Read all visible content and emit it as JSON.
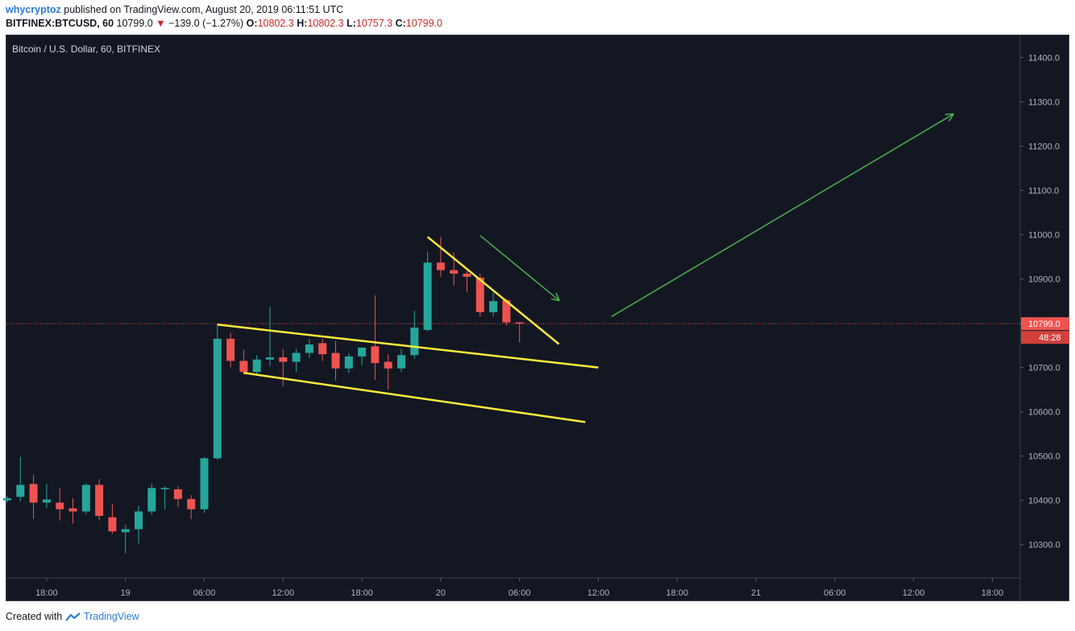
{
  "header": {
    "author": "whycryptoz",
    "published": "published on TradingView.com, August 20, 2019 06:11:51 UTC",
    "symbol_line": "BITFINEX:BTCUSD, 60",
    "last": "10799.0",
    "change_arrow": "▼",
    "change": "−139.0 (−1.27%)",
    "o_label": "O:",
    "o": "10802.3",
    "h_label": "H:",
    "h": "10802.3",
    "l_label": "L:",
    "l": "10757.3",
    "c_label": "C:",
    "c": "10799.0"
  },
  "footer": {
    "created_with": "Created with",
    "brand": "TradingView"
  },
  "colors": {
    "background": "#131722",
    "up": "#26a69a",
    "down": "#ef5350",
    "trendline": "#ffeb3b",
    "arrow": "#4caf50",
    "price_label": "#ef5350"
  },
  "chart_data": {
    "type": "candlestick",
    "title": "Bitcoin / U.S. Dollar, 60, BITFINEX",
    "ylim": [
      10225,
      11450
    ],
    "y_ticks": [
      "11400.0",
      "11300.0",
      "11200.0",
      "11100.0",
      "11000.0",
      "10900.0",
      "10800.0",
      "10700.0",
      "10600.0",
      "10500.0",
      "10400.0",
      "10300.0"
    ],
    "x_ticks": [
      "18:00",
      "19",
      "06:00",
      "12:00",
      "18:00",
      "20",
      "06:00",
      "12:00",
      "18:00",
      "21",
      "06:00",
      "12:00",
      "18:00"
    ],
    "last_price_label": "10799.0",
    "countdown_label": "48:28",
    "candles": [
      {
        "o": 10400,
        "h": 10410,
        "l": 10395,
        "c": 10405
      },
      {
        "o": 10408,
        "h": 10498,
        "l": 10398,
        "c": 10435
      },
      {
        "o": 10437,
        "h": 10458,
        "l": 10358,
        "c": 10395
      },
      {
        "o": 10395,
        "h": 10438,
        "l": 10382,
        "c": 10402
      },
      {
        "o": 10395,
        "h": 10428,
        "l": 10355,
        "c": 10380
      },
      {
        "o": 10382,
        "h": 10405,
        "l": 10348,
        "c": 10375
      },
      {
        "o": 10375,
        "h": 10438,
        "l": 10368,
        "c": 10435
      },
      {
        "o": 10435,
        "h": 10448,
        "l": 10355,
        "c": 10365
      },
      {
        "o": 10362,
        "h": 10392,
        "l": 10325,
        "c": 10330
      },
      {
        "o": 10328,
        "h": 10345,
        "l": 10280,
        "c": 10335
      },
      {
        "o": 10335,
        "h": 10388,
        "l": 10302,
        "c": 10375
      },
      {
        "o": 10375,
        "h": 10438,
        "l": 10368,
        "c": 10428
      },
      {
        "o": 10425,
        "h": 10432,
        "l": 10380,
        "c": 10428
      },
      {
        "o": 10425,
        "h": 10432,
        "l": 10385,
        "c": 10403
      },
      {
        "o": 10403,
        "h": 10412,
        "l": 10358,
        "c": 10380
      },
      {
        "o": 10380,
        "h": 10498,
        "l": 10372,
        "c": 10495
      },
      {
        "o": 10495,
        "h": 10798,
        "l": 10492,
        "c": 10765
      },
      {
        "o": 10765,
        "h": 10778,
        "l": 10700,
        "c": 10715
      },
      {
        "o": 10715,
        "h": 10740,
        "l": 10685,
        "c": 10690
      },
      {
        "o": 10690,
        "h": 10728,
        "l": 10682,
        "c": 10718
      },
      {
        "o": 10718,
        "h": 10837,
        "l": 10702,
        "c": 10723
      },
      {
        "o": 10723,
        "h": 10742,
        "l": 10658,
        "c": 10713
      },
      {
        "o": 10713,
        "h": 10742,
        "l": 10690,
        "c": 10733
      },
      {
        "o": 10733,
        "h": 10765,
        "l": 10722,
        "c": 10752
      },
      {
        "o": 10755,
        "h": 10765,
        "l": 10715,
        "c": 10730
      },
      {
        "o": 10733,
        "h": 10760,
        "l": 10670,
        "c": 10698
      },
      {
        "o": 10698,
        "h": 10732,
        "l": 10688,
        "c": 10725
      },
      {
        "o": 10725,
        "h": 10740,
        "l": 10705,
        "c": 10745
      },
      {
        "o": 10748,
        "h": 10863,
        "l": 10672,
        "c": 10710
      },
      {
        "o": 10713,
        "h": 10730,
        "l": 10650,
        "c": 10698
      },
      {
        "o": 10698,
        "h": 10742,
        "l": 10690,
        "c": 10728
      },
      {
        "o": 10728,
        "h": 10828,
        "l": 10720,
        "c": 10790
      },
      {
        "o": 10785,
        "h": 10962,
        "l": 10782,
        "c": 10937
      },
      {
        "o": 10937,
        "h": 10995,
        "l": 10905,
        "c": 10920
      },
      {
        "o": 10920,
        "h": 10960,
        "l": 10885,
        "c": 10912
      },
      {
        "o": 10912,
        "h": 10918,
        "l": 10870,
        "c": 10905
      },
      {
        "o": 10903,
        "h": 10912,
        "l": 10815,
        "c": 10825
      },
      {
        "o": 10825,
        "h": 10870,
        "l": 10815,
        "c": 10850
      },
      {
        "o": 10852,
        "h": 10855,
        "l": 10795,
        "c": 10802
      },
      {
        "o": 10802,
        "h": 10802,
        "l": 10757,
        "c": 10799
      }
    ],
    "drawings": [
      {
        "type": "trendline",
        "x1": 16,
        "y1": 10797,
        "x2": 45,
        "y2": 10700
      },
      {
        "type": "trendline",
        "x1": 18,
        "y1": 10688,
        "x2": 44,
        "y2": 10577
      },
      {
        "type": "trendline",
        "x1": 32,
        "y1": 10995,
        "x2": 42,
        "y2": 10753
      },
      {
        "type": "arrow",
        "x1": 36,
        "y1": 10998,
        "x2": 42,
        "y2": 10852
      },
      {
        "type": "arrow",
        "x1": 46,
        "y1": 10815,
        "x2": 72,
        "y2": 11272
      }
    ]
  }
}
